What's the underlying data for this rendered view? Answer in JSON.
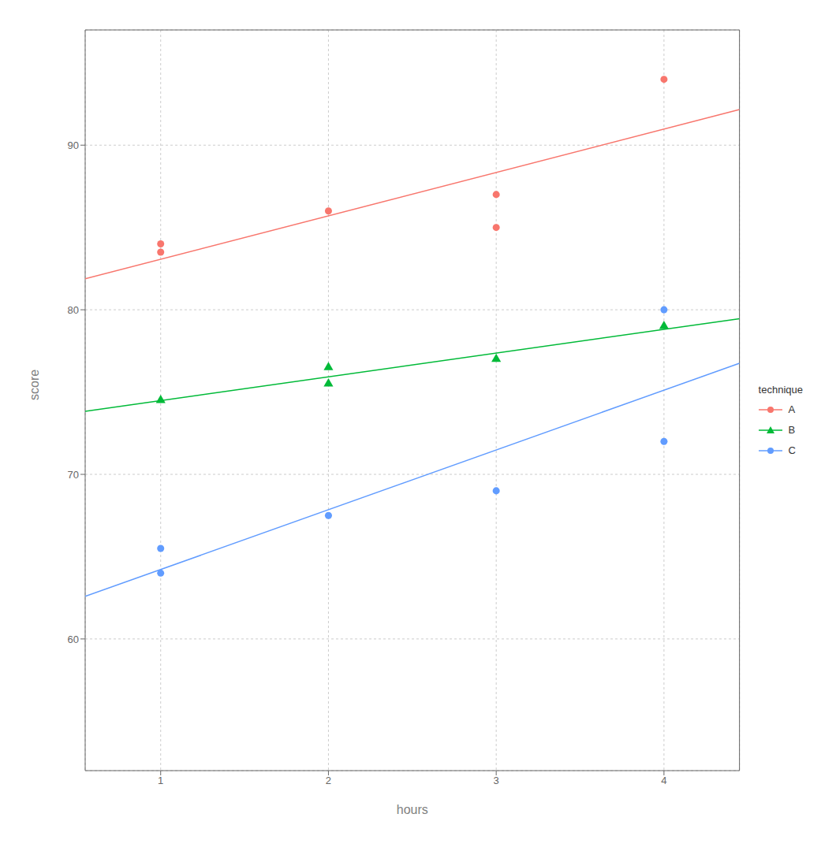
{
  "chart_data": {
    "type": "scatter",
    "xlabel": "hours",
    "ylabel": "score",
    "legend_title": "technique",
    "grid": true,
    "legend": "right",
    "series": [
      {
        "name": "A",
        "color": "#F8766D",
        "marker": "circle",
        "x": [
          1,
          1,
          2,
          3,
          3,
          4
        ],
        "values": [
          84.0,
          83.5,
          86.0,
          87.0,
          85.0,
          94.0
        ],
        "fit": {
          "x": [
            0.55,
            4.45
          ],
          "values": [
            81.881818,
            92.163636
          ]
        }
      },
      {
        "name": "B",
        "color": "#00BA38",
        "marker": "triangle",
        "x": [
          1,
          2,
          2,
          3,
          4
        ],
        "values": [
          74.5,
          76.5,
          75.5,
          77.0,
          79.0
        ],
        "fit": {
          "x": [
            0.55,
            4.45
          ],
          "values": [
            73.831731,
            79.456731
          ]
        }
      },
      {
        "name": "C",
        "color": "#619CFF",
        "marker": "circle",
        "x": [
          1,
          1,
          2,
          3,
          4,
          4
        ],
        "values": [
          65.5,
          64.0,
          67.5,
          69.0,
          80.0,
          72.0
        ],
        "fit": {
          "x": [
            0.55,
            4.45
          ],
          "values": [
            62.585088,
            76.748246
          ]
        }
      }
    ],
    "xlim": [
      0.55,
      4.45
    ],
    "ylim": [
      52,
      97
    ],
    "xticks": [
      1,
      2,
      3,
      4
    ],
    "yticks": [
      60,
      70,
      80,
      90
    ]
  }
}
